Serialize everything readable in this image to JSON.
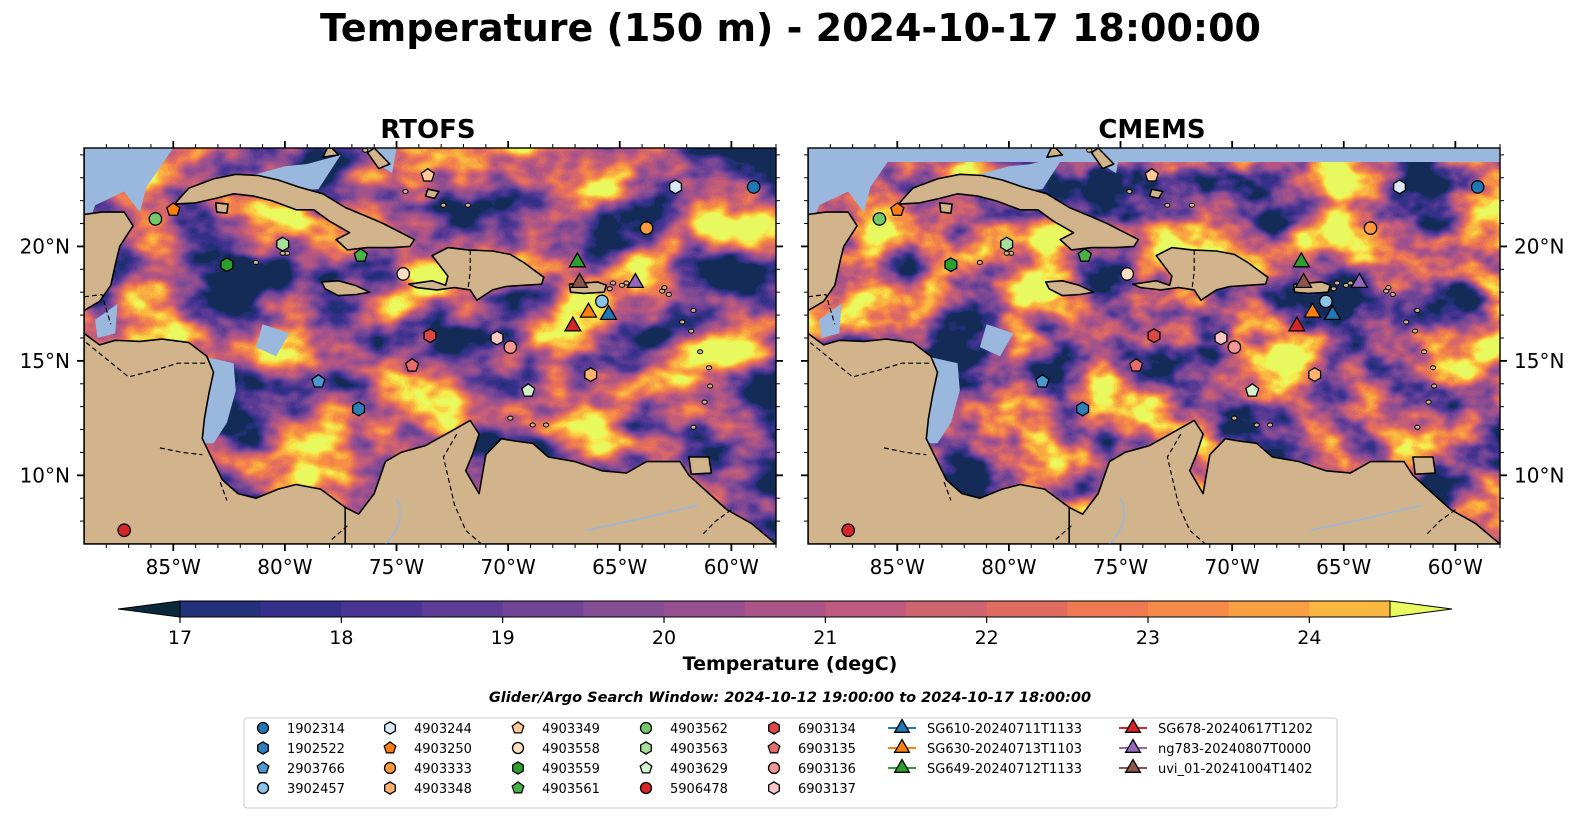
{
  "title": "Temperature (150 m) - 2024-10-17 18:00:00",
  "panels": [
    {
      "name": "RTOFS"
    },
    {
      "name": "CMEMS"
    }
  ],
  "colorbar": {
    "label": "Temperature (degC)",
    "ticks": [
      "17",
      "18",
      "19",
      "20",
      "21",
      "22",
      "23",
      "24"
    ],
    "colors": [
      "#0a2a3c",
      "#152c5a",
      "#23317a",
      "#36308a",
      "#4a3592",
      "#5e3d96",
      "#714596",
      "#844d94",
      "#984f8f",
      "#ab5487",
      "#bd5a7d",
      "#cf6471",
      "#e06c60",
      "#ef7a52",
      "#f68a48",
      "#f9a043",
      "#fab840",
      "#f9d145",
      "#f4ea50",
      "#e9fa60"
    ]
  },
  "search_window": "Glider/Argo Search Window: 2024-10-12 19:00:00 to 2024-10-17 18:00:00",
  "chart_data": [
    {
      "type": "map",
      "title": "RTOFS",
      "xlabel": "",
      "ylabel": "",
      "xlim": [
        -89,
        -58
      ],
      "ylim": [
        7,
        24
      ],
      "x_ticks": [
        "85°W",
        "80°W",
        "75°W",
        "70°W",
        "65°W",
        "60°W"
      ],
      "y_ticks": [
        "10°N",
        "15°N",
        "20°N"
      ],
      "variable": "Temperature (degC)",
      "depth": "150 m"
    },
    {
      "type": "map",
      "title": "CMEMS",
      "xlabel": "",
      "ylabel": "",
      "xlim": [
        -89,
        -58
      ],
      "ylim": [
        7,
        24
      ],
      "x_ticks": [
        "85°W",
        "80°W",
        "75°W",
        "70°W",
        "65°W",
        "60°W"
      ],
      "y_ticks": [
        "10°N",
        "15°N",
        "20°N"
      ],
      "variable": "Temperature (degC)",
      "depth": "150 m"
    }
  ],
  "legend": [
    {
      "label": "1902314",
      "marker": "circle",
      "color": "#1f77b4"
    },
    {
      "label": "1902522",
      "marker": "hexagon",
      "color": "#2e7fb8"
    },
    {
      "label": "2903766",
      "marker": "pentagon",
      "color": "#4a99d0"
    },
    {
      "label": "3902457",
      "marker": "circle",
      "color": "#8ec3e8"
    },
    {
      "label": "4903244",
      "marker": "hexagon",
      "color": "#dbe8f5"
    },
    {
      "label": "4903250",
      "marker": "pentagon",
      "color": "#ff7f0e"
    },
    {
      "label": "4903333",
      "marker": "circle",
      "color": "#ff9a3c"
    },
    {
      "label": "4903348",
      "marker": "hexagon",
      "color": "#ffb26b"
    },
    {
      "label": "4903349",
      "marker": "pentagon",
      "color": "#ffca98"
    },
    {
      "label": "4903558",
      "marker": "circle",
      "color": "#fde0c4"
    },
    {
      "label": "4903559",
      "marker": "hexagon",
      "color": "#2ca02c"
    },
    {
      "label": "4903561",
      "marker": "pentagon",
      "color": "#49b247"
    },
    {
      "label": "4903562",
      "marker": "circle",
      "color": "#73c86a"
    },
    {
      "label": "4903563",
      "marker": "hexagon",
      "color": "#a6e09c"
    },
    {
      "label": "4903629",
      "marker": "pentagon",
      "color": "#d4f2cc"
    },
    {
      "label": "5906478",
      "marker": "circle",
      "color": "#d62728"
    },
    {
      "label": "6903134",
      "marker": "hexagon",
      "color": "#de4545"
    },
    {
      "label": "6903135",
      "marker": "pentagon",
      "color": "#e96a6a"
    },
    {
      "label": "6903136",
      "marker": "circle",
      "color": "#f19595"
    },
    {
      "label": "6903137",
      "marker": "hexagon",
      "color": "#f9c6c6"
    },
    {
      "label": "SG610-20240711T1133",
      "marker": "triangle",
      "color": "#1f77b4"
    },
    {
      "label": "SG630-20240713T1103",
      "marker": "triangle",
      "color": "#ff7f0e"
    },
    {
      "label": "SG649-20240712T1133",
      "marker": "triangle",
      "color": "#2ca02c"
    },
    {
      "label": "SG678-20240617T1202",
      "marker": "triangle",
      "color": "#d62728"
    },
    {
      "label": "ng783-20240807T0000",
      "marker": "triangle",
      "color": "#9467bd"
    },
    {
      "label": "uvi_01-20241004T1402",
      "marker": "triangle",
      "color": "#8c564b"
    }
  ],
  "platforms": [
    {
      "id": "1902314",
      "lon": -59.0,
      "lat": 22.6
    },
    {
      "id": "2903766",
      "lon": -78.5,
      "lat": 14.1
    },
    {
      "id": "4903244",
      "lon": -62.5,
      "lat": 22.6
    },
    {
      "id": "4903250",
      "lon": -85.0,
      "lat": 21.6
    },
    {
      "id": "4903333",
      "lon": -63.8,
      "lat": 20.8
    },
    {
      "id": "4903349",
      "lon": -73.6,
      "lat": 23.1
    },
    {
      "id": "4903558",
      "lon": -74.7,
      "lat": 18.8
    },
    {
      "id": "4903559",
      "lon": -82.6,
      "lat": 19.2
    },
    {
      "id": "4903561",
      "lon": -76.6,
      "lat": 19.6
    },
    {
      "id": "4903562",
      "lon": -85.8,
      "lat": 21.2
    },
    {
      "id": "4903563",
      "lon": -80.1,
      "lat": 20.1
    },
    {
      "id": "4903629",
      "lon": -69.1,
      "lat": 13.7
    },
    {
      "id": "5906478",
      "lon": -87.2,
      "lat": 7.6
    },
    {
      "id": "6903134",
      "lon": -73.5,
      "lat": 16.1
    },
    {
      "id": "6903135",
      "lon": -74.3,
      "lat": 14.8
    },
    {
      "id": "6903136",
      "lon": -69.9,
      "lat": 15.6
    },
    {
      "id": "6903137",
      "lon": -70.5,
      "lat": 16.0
    },
    {
      "id": "1902522",
      "lon": -76.7,
      "lat": 12.9
    },
    {
      "id": "3902457",
      "lon": -65.8,
      "lat": 17.6
    },
    {
      "id": "4903348",
      "lon": -66.3,
      "lat": 14.4
    },
    {
      "id": "SG610-20240711T1133",
      "lon": -65.5,
      "lat": 17.1
    },
    {
      "id": "SG630-20240713T1103",
      "lon": -66.4,
      "lat": 17.2
    },
    {
      "id": "SG649-20240712T1133",
      "lon": -66.9,
      "lat": 19.4
    },
    {
      "id": "SG678-20240617T1202",
      "lon": -67.1,
      "lat": 16.6
    },
    {
      "id": "ng783-20240807T0000",
      "lon": -64.3,
      "lat": 18.5
    },
    {
      "id": "uvi_01-20241004T1402",
      "lon": -66.8,
      "lat": 18.5
    }
  ]
}
